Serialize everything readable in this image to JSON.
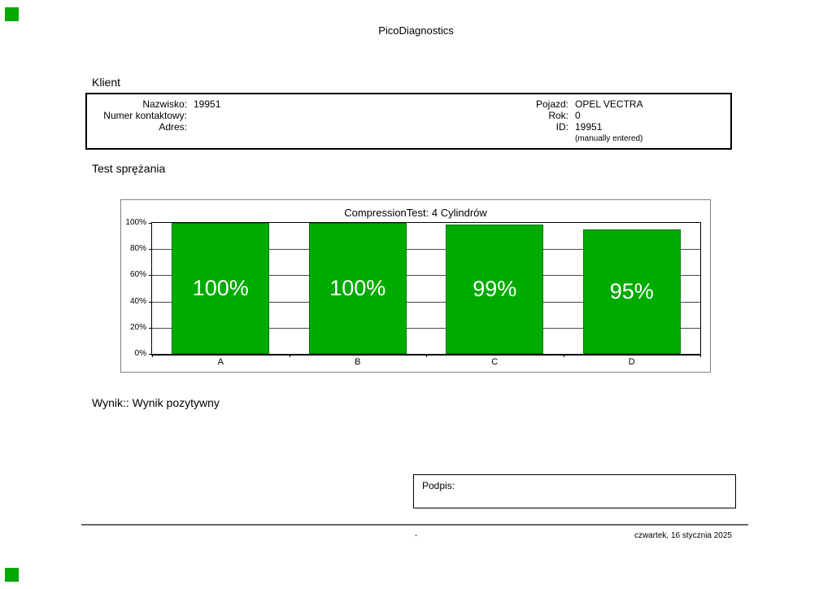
{
  "page": {
    "title": "PicoDiagnostics"
  },
  "client": {
    "section_label": "Klient",
    "left_rows": [
      {
        "label": "Nazwisko:",
        "value": "19951"
      },
      {
        "label": "Numer kontaktowy:",
        "value": ""
      },
      {
        "label": "Adres:",
        "value": ""
      }
    ],
    "right_rows": [
      {
        "label": "Pojazd:",
        "value": "OPEL VECTRA"
      },
      {
        "label": "Rok:",
        "value": "0"
      },
      {
        "label": "ID:",
        "value": "19951"
      }
    ],
    "id_note": "(manually entered)"
  },
  "test": {
    "section_label": "Test sprężania"
  },
  "chart_data": {
    "type": "bar",
    "title": "CompressionTest: 4 Cylindrów",
    "categories": [
      "A",
      "B",
      "C",
      "D"
    ],
    "values": [
      100,
      100,
      99,
      95
    ],
    "value_labels": [
      "100%",
      "100%",
      "99%",
      "95%"
    ],
    "yticks": [
      "100%",
      "80%",
      "60%",
      "40%",
      "20%",
      "0%"
    ],
    "ylim": [
      0,
      100
    ],
    "grid": true,
    "legend": "none",
    "xlabel": "",
    "ylabel": ""
  },
  "result": {
    "text": "Wynik:: Wynik pozytywny"
  },
  "signature": {
    "label": "Podpis:"
  },
  "footer": {
    "center": "-",
    "date": "czwartek, 16 stycznia 2025"
  },
  "colors": {
    "bar": "#00AB00",
    "marker": "#00A800"
  }
}
